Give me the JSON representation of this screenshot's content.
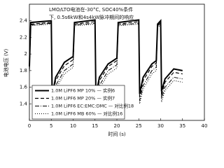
{
  "chart_data": {
    "type": "line",
    "title": [
      "LMO/LTO电池在-30°C, SOC40%条件",
      "下, 0.5s6kW和4s4kW脉冲期间的响应"
    ],
    "x_label": "时间 (s)",
    "y_label": "电池电压 (V)",
    "x": [
      0,
      0.3,
      5,
      5.2,
      6,
      8,
      10,
      10.3,
      15,
      15.2,
      16,
      18,
      20,
      20.3,
      25,
      25.2,
      26,
      28,
      29,
      29.3,
      30,
      30.2,
      31,
      33,
      35
    ],
    "series": [
      {
        "name": "1.0M LiPF6 MP 10% — 实例6",
        "color": "#000000",
        "dash": "none",
        "width": 2,
        "values": [
          1.85,
          2.38,
          2.4,
          1.5,
          1.72,
          1.9,
          1.97,
          2.38,
          2.41,
          1.5,
          1.72,
          1.88,
          1.95,
          2.38,
          2.41,
          1.52,
          1.72,
          1.88,
          1.92,
          2.36,
          2.4,
          1.55,
          1.7,
          1.82,
          1.8
        ]
      },
      {
        "name": "1.0M LiPF6 MP 20% — 实例7",
        "color": "#000000",
        "dash": "5 3",
        "width": 1.2,
        "values": [
          1.82,
          2.36,
          2.38,
          1.46,
          1.68,
          1.86,
          1.93,
          2.36,
          2.39,
          1.46,
          1.68,
          1.85,
          1.92,
          2.36,
          2.39,
          1.48,
          1.68,
          1.85,
          1.89,
          2.34,
          2.38,
          1.5,
          1.66,
          1.78,
          1.76
        ]
      },
      {
        "name": "1.0M LiPF6 EC:EMC:DMC — 对比例18",
        "color": "#000000",
        "dash": "6 2 1 2",
        "width": 1,
        "values": [
          1.8,
          2.35,
          2.37,
          1.43,
          1.62,
          1.8,
          1.88,
          2.35,
          2.37,
          1.42,
          1.62,
          1.8,
          1.87,
          2.35,
          2.37,
          1.44,
          1.62,
          1.8,
          1.84,
          2.33,
          2.36,
          1.46,
          1.6,
          1.72,
          1.7
        ]
      },
      {
        "name": "1.0M LiPF6 MB 60% — 对比例16",
        "color": "#000000",
        "dash": "1 2",
        "width": 1,
        "values": [
          1.78,
          2.34,
          2.36,
          1.4,
          1.58,
          1.76,
          1.84,
          2.34,
          2.36,
          1.39,
          1.58,
          1.76,
          1.83,
          2.34,
          2.36,
          1.4,
          1.58,
          1.76,
          1.8,
          2.32,
          2.35,
          1.42,
          1.56,
          1.68,
          1.66
        ]
      }
    ],
    "xlim": [
      0,
      40
    ],
    "xticks": [
      0,
      5,
      10,
      15,
      20,
      25,
      30,
      35,
      40
    ],
    "ylim": [
      1.2,
      2.6
    ],
    "yticks": [
      1.4,
      1.6,
      1.8,
      2.0,
      2.2,
      2.4
    ],
    "legend": "lower-left"
  }
}
